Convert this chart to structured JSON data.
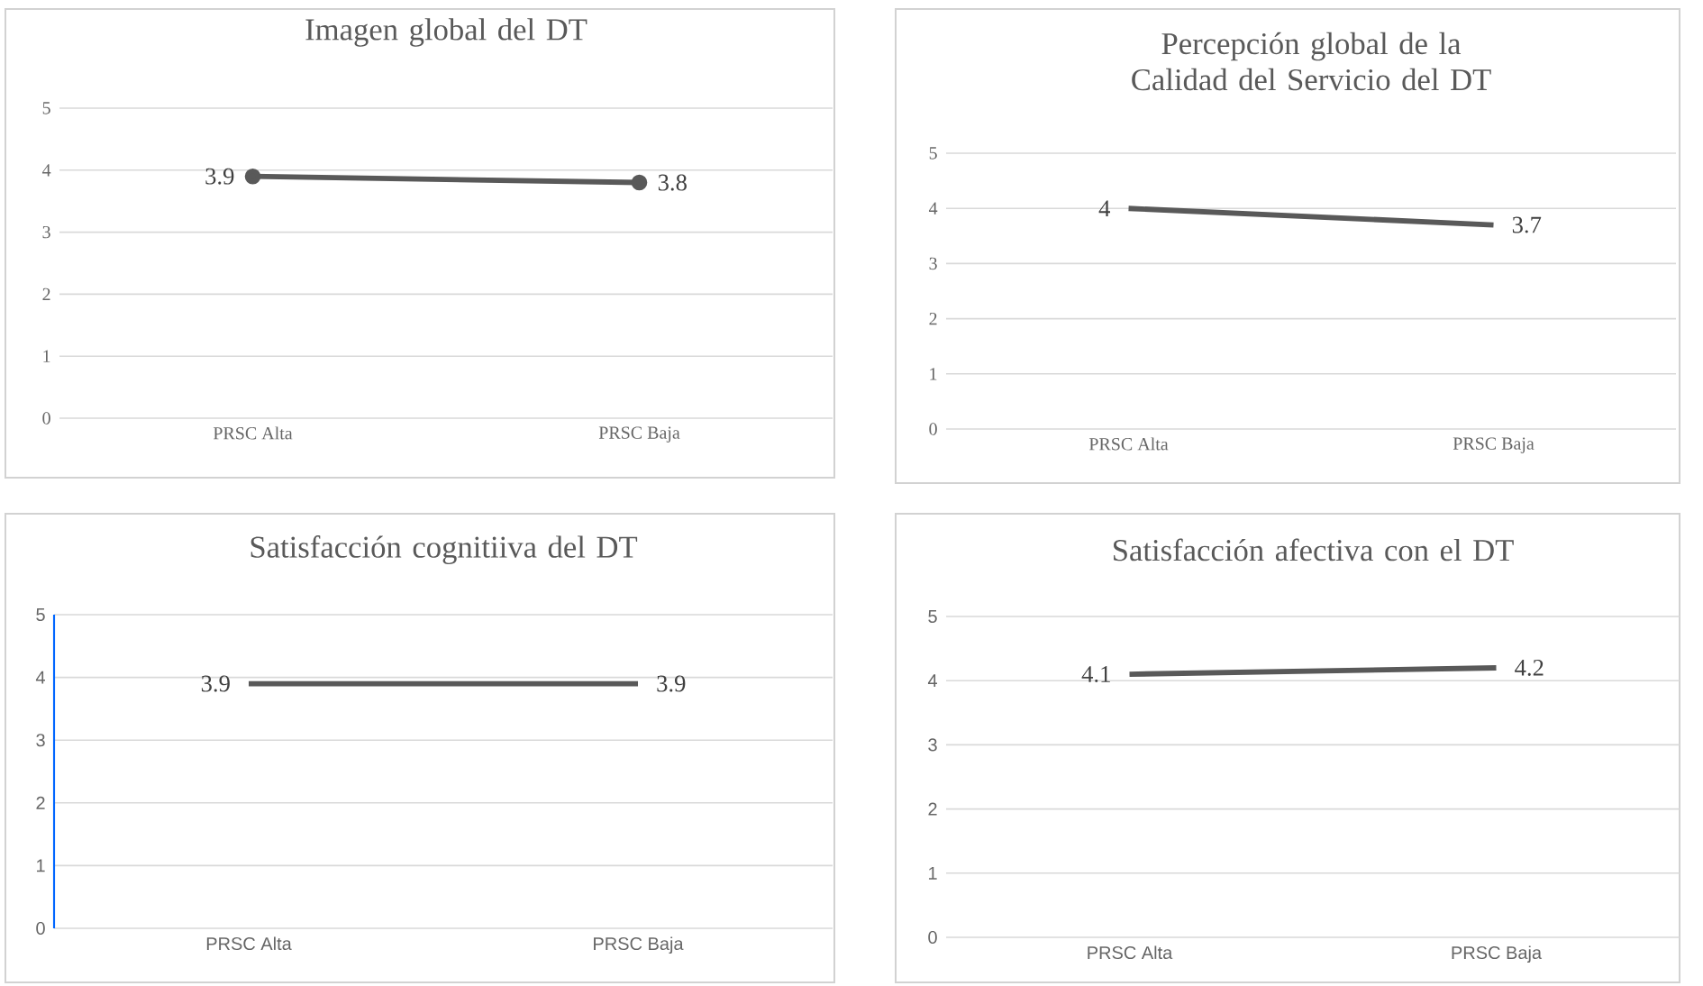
{
  "chart_data": [
    {
      "type": "line",
      "title": "Imagen global del DT",
      "categories": [
        "PRSC Alta",
        "PRSC Baja"
      ],
      "series": [
        {
          "color": "#595959",
          "values": [
            3.9,
            3.8
          ],
          "value_labels": [
            "3.9",
            "3.8"
          ]
        }
      ],
      "ylim": [
        0,
        5
      ],
      "yticks": [
        0,
        1,
        2,
        3,
        4,
        5
      ],
      "grid": "y",
      "marker": "circle"
    },
    {
      "type": "line",
      "title": "Percepción global de la Calidad del Servicio del DT",
      "categories": [
        "PRSC Alta",
        "PRSC Baja"
      ],
      "series": [
        {
          "color": "#595959",
          "values": [
            4,
            3.7
          ],
          "value_labels": [
            "4",
            "3.7"
          ]
        }
      ],
      "ylim": [
        0,
        5
      ],
      "yticks": [
        0,
        1,
        2,
        3,
        4,
        5
      ],
      "grid": "y"
    },
    {
      "type": "line",
      "title": "Satisfacción cognitiiva del DT",
      "categories": [
        "PRSC Alta",
        "PRSC Baja"
      ],
      "series": [
        {
          "color": "#595959",
          "values": [
            3.9,
            3.9
          ],
          "value_labels": [
            "3.9",
            "3.9"
          ]
        }
      ],
      "ylim": [
        0,
        5
      ],
      "yticks": [
        0,
        1,
        2,
        3,
        4,
        5
      ],
      "grid": "y"
    },
    {
      "type": "line",
      "title": "Satisfacción afectiva con el DT",
      "categories": [
        "PRSC Alta",
        "PRSC Baja"
      ],
      "series": [
        {
          "color": "#595959",
          "values": [
            4.1,
            4.2
          ],
          "value_labels": [
            "4.1",
            "4.2"
          ]
        }
      ],
      "ylim": [
        0,
        5
      ],
      "yticks": [
        0,
        1,
        2,
        3,
        4,
        5
      ],
      "grid": "y"
    }
  ]
}
